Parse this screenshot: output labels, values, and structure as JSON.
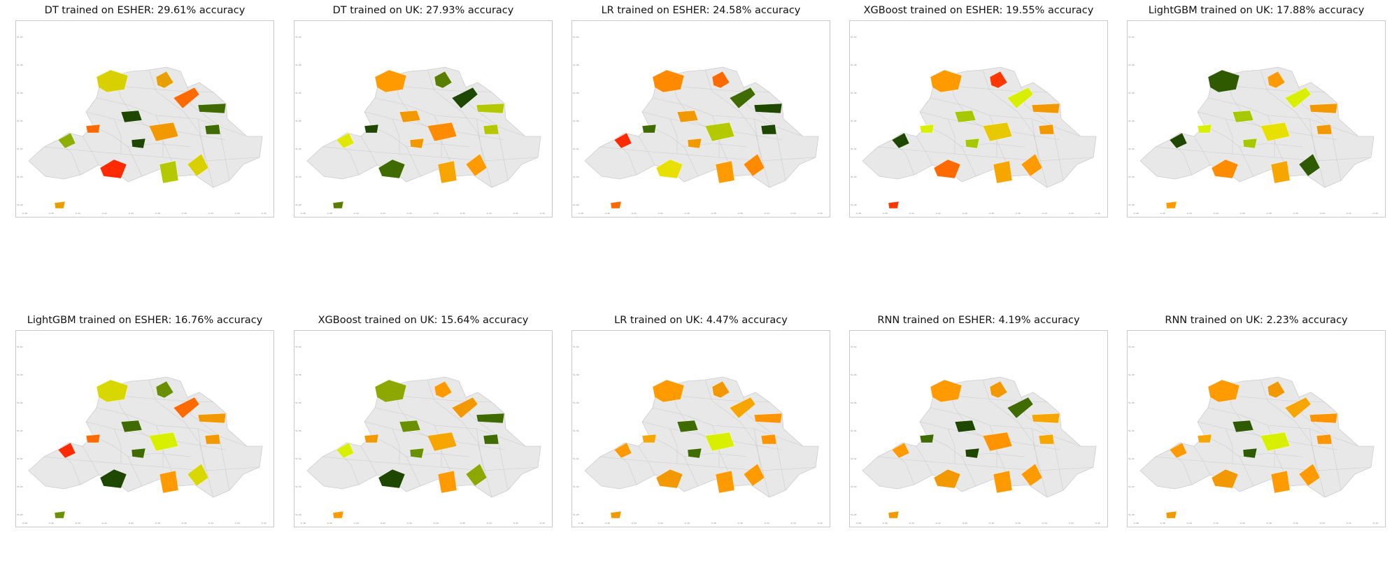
{
  "figure": {
    "panels": [
      {
        "title": "DT trained on ESHER: 29.61% accuracy",
        "highlight_colors": [
          "#d9d000",
          "#e8a000",
          "#ff6a00",
          "#3f6b00",
          "#1e4700",
          "#8db000",
          "#f29800",
          "#ff2a00",
          "#b5c900"
        ]
      },
      {
        "title": "DT trained on UK: 27.93% accuracy",
        "highlight_colors": [
          "#ff9a00",
          "#5a7f00",
          "#1e4700",
          "#b4c800",
          "#f29800",
          "#e0e800",
          "#ff8c00",
          "#3f6b00",
          "#f7a500"
        ]
      },
      {
        "title": "LR trained on ESHER: 24.58% accuracy",
        "highlight_colors": [
          "#ff8a00",
          "#ff6a00",
          "#3f6b00",
          "#1e4700",
          "#f29800",
          "#ff2a00",
          "#b5c900",
          "#e8e000",
          "#ff9a00"
        ]
      },
      {
        "title": "XGBoost trained on ESHER: 19.55% accuracy",
        "highlight_colors": [
          "#ff9a00",
          "#ff3800",
          "#d8f000",
          "#f29800",
          "#a5c800",
          "#1e4700",
          "#e8c800",
          "#ff6a00",
          "#f7a500"
        ]
      },
      {
        "title": "LightGBM trained on UK: 17.88% accuracy",
        "highlight_colors": [
          "#2f5a00",
          "#ff9a00",
          "#d8f000",
          "#f29800",
          "#a5c800",
          "#1e4700",
          "#e8e000",
          "#ff8c00",
          "#f7a500"
        ]
      },
      {
        "title": "LightGBM trained on ESHER: 16.76% accuracy",
        "highlight_colors": [
          "#d8d800",
          "#6a8f00",
          "#ff6a00",
          "#f29800",
          "#3f6b00",
          "#ff2a00",
          "#d8f000",
          "#1e4700",
          "#ff9a00"
        ]
      },
      {
        "title": "XGBoost trained on UK: 15.64% accuracy",
        "highlight_colors": [
          "#8da800",
          "#ff9a00",
          "#f29800",
          "#3f6b00",
          "#6a8f00",
          "#d8f000",
          "#f7a500",
          "#1e4700",
          "#ff9a00"
        ]
      },
      {
        "title": "LR trained on UK: 4.47% accuracy",
        "highlight_colors": [
          "#ff9a00",
          "#f29800",
          "#f7a500",
          "#ff9400",
          "#3f6b00",
          "#ff9a00",
          "#d8f000",
          "#f29800",
          "#ff9a00"
        ]
      },
      {
        "title": "RNN trained on ESHER: 4.19% accuracy",
        "highlight_colors": [
          "#ff9a00",
          "#f29800",
          "#3f6b00",
          "#f7a500",
          "#1e4700",
          "#ff9a00",
          "#ff9400",
          "#f29800",
          "#ff9a00"
        ]
      },
      {
        "title": "RNN trained on UK: 2.23% accuracy",
        "highlight_colors": [
          "#ff9a00",
          "#f29800",
          "#f7a500",
          "#ff9400",
          "#2f5a00",
          "#ff9a00",
          "#d8f000",
          "#f29800",
          "#ff9a00"
        ]
      }
    ],
    "base_region_color": "#e8e8e8",
    "border_color": "#cccccc"
  }
}
